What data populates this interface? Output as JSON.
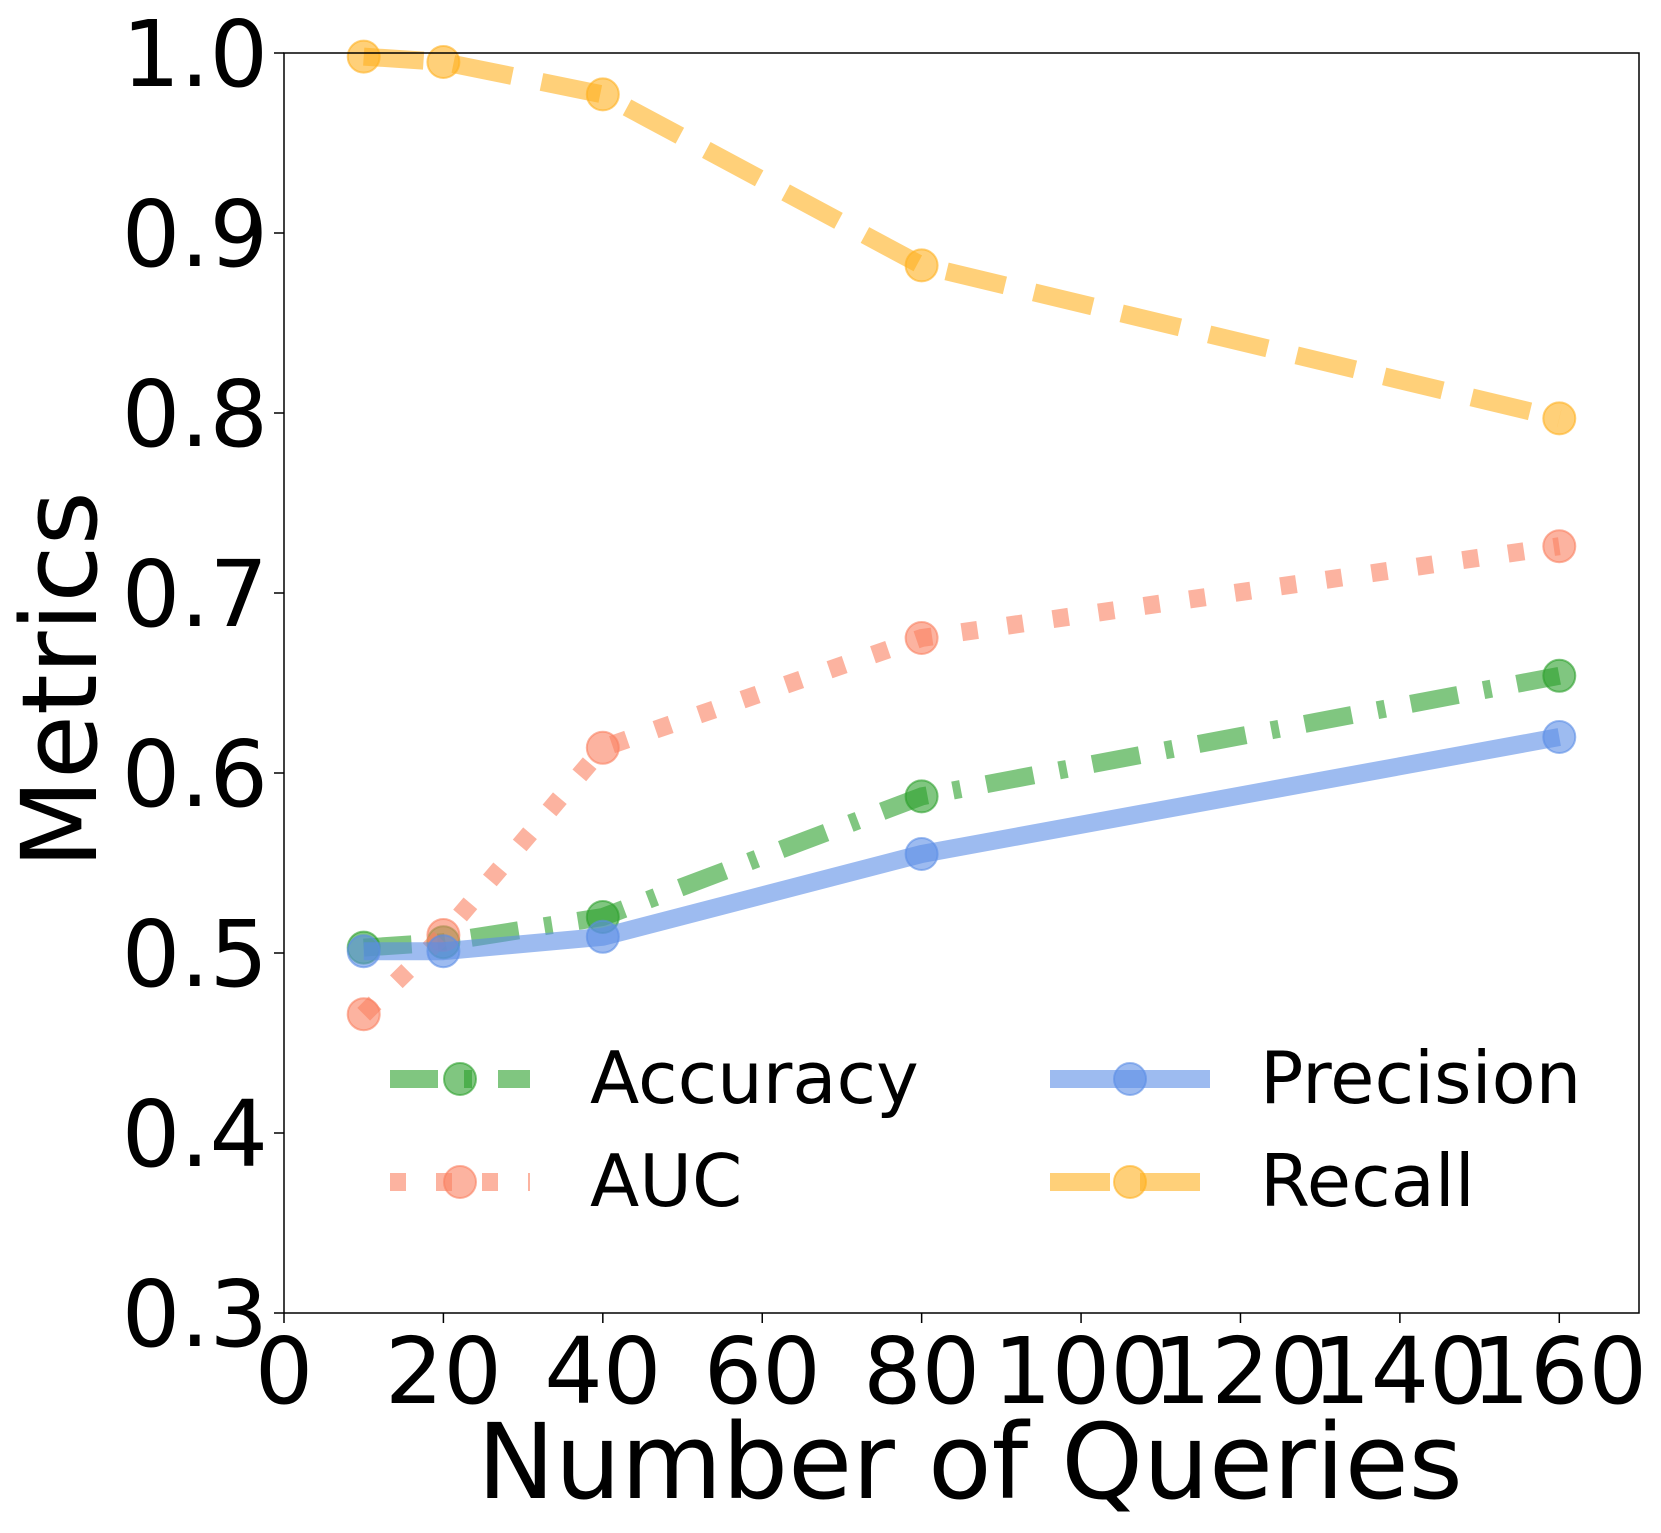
{
  "chart_data": {
    "type": "line",
    "title": "",
    "xlabel": "Number of Queries",
    "ylabel": "Metrics",
    "xlim": [
      0,
      170
    ],
    "ylim": [
      0.3,
      1.0
    ],
    "xticks": [
      0,
      20,
      40,
      60,
      80,
      100,
      120,
      140,
      160
    ],
    "xtick_labels": [
      "0",
      "20",
      "40",
      "60",
      "80",
      "100",
      "120",
      "140",
      "160"
    ],
    "yticks": [
      0.3,
      0.4,
      0.5,
      0.6,
      0.7,
      0.8,
      0.9,
      1.0
    ],
    "ytick_labels": [
      "0.3",
      "0.4",
      "0.5",
      "0.6",
      "0.7",
      "0.8",
      "0.9",
      "1.0"
    ],
    "grid": false,
    "legend_position": "lower-center",
    "x": [
      10,
      20,
      40,
      80,
      160
    ],
    "series": [
      {
        "name": "Accuracy",
        "color": "#2ca02c",
        "linestyle": "dashdot",
        "values": [
          0.503,
          0.506,
          0.52,
          0.587,
          0.654
        ]
      },
      {
        "name": "AUC",
        "color": "#fa8060",
        "linestyle": "dotted",
        "values": [
          0.466,
          0.51,
          0.614,
          0.675,
          0.726
        ]
      },
      {
        "name": "Precision",
        "color": "#5b8ee6",
        "linestyle": "solid",
        "values": [
          0.501,
          0.501,
          0.509,
          0.555,
          0.62
        ]
      },
      {
        "name": "Recall",
        "color": "#ffb020",
        "linestyle": "dashed",
        "values": [
          0.998,
          0.995,
          0.977,
          0.882,
          0.797
        ]
      }
    ]
  }
}
